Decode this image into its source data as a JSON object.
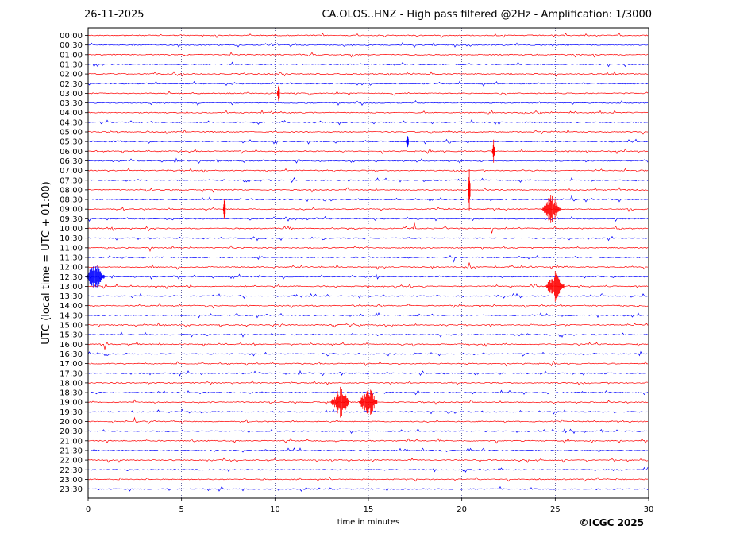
{
  "chart_data": {
    "type": "line",
    "title": "CA.OLOS..HNZ - High pass filtered @2Hz - Amplification: 1/3000",
    "date": "26-11-2025",
    "xlabel": "time in minutes",
    "ylabel": "UTC (local time = UTC + 01:00)",
    "xlim": [
      0,
      30
    ],
    "x_ticks": [
      "0",
      "5",
      "10",
      "15",
      "20",
      "25",
      "30"
    ],
    "grid": "vertical dotted at 5-minute marks",
    "trace_colors": [
      "#ff0000",
      "#0000ff"
    ],
    "rows": [
      "00:00",
      "00:30",
      "01:00",
      "01:30",
      "02:00",
      "02:30",
      "03:00",
      "03:30",
      "04:00",
      "04:30",
      "05:00",
      "05:30",
      "06:00",
      "06:30",
      "07:00",
      "07:30",
      "08:00",
      "08:30",
      "09:00",
      "09:30",
      "10:00",
      "10:30",
      "11:00",
      "11:30",
      "12:00",
      "12:30",
      "13:00",
      "13:30",
      "14:00",
      "14:30",
      "15:00",
      "15:30",
      "16:00",
      "16:30",
      "17:00",
      "17:30",
      "18:00",
      "18:30",
      "19:00",
      "19:30",
      "20:00",
      "20:30",
      "21:00",
      "21:30",
      "22:00",
      "22:30",
      "23:00",
      "23:30"
    ],
    "events": [
      {
        "row": "03:00",
        "minute": 10.2,
        "note": "spike"
      },
      {
        "row": "05:30",
        "minute": 17.1,
        "note": "spike"
      },
      {
        "row": "06:00",
        "minute": 21.7,
        "note": "spike"
      },
      {
        "row": "08:00",
        "minute": 20.4,
        "note": "large spike"
      },
      {
        "row": "09:00",
        "minute": 7.3,
        "note": "spike"
      },
      {
        "row": "09:00",
        "minute": 24.8,
        "note": "burst"
      },
      {
        "row": "12:30",
        "minute": 0.4,
        "note": "burst"
      },
      {
        "row": "13:00",
        "minute": 25.0,
        "note": "burst"
      },
      {
        "row": "19:00",
        "minute": 13.5,
        "note": "burst"
      },
      {
        "row": "19:00",
        "minute": 15.0,
        "note": "burst"
      }
    ]
  },
  "footer": "©ICGC 2025"
}
